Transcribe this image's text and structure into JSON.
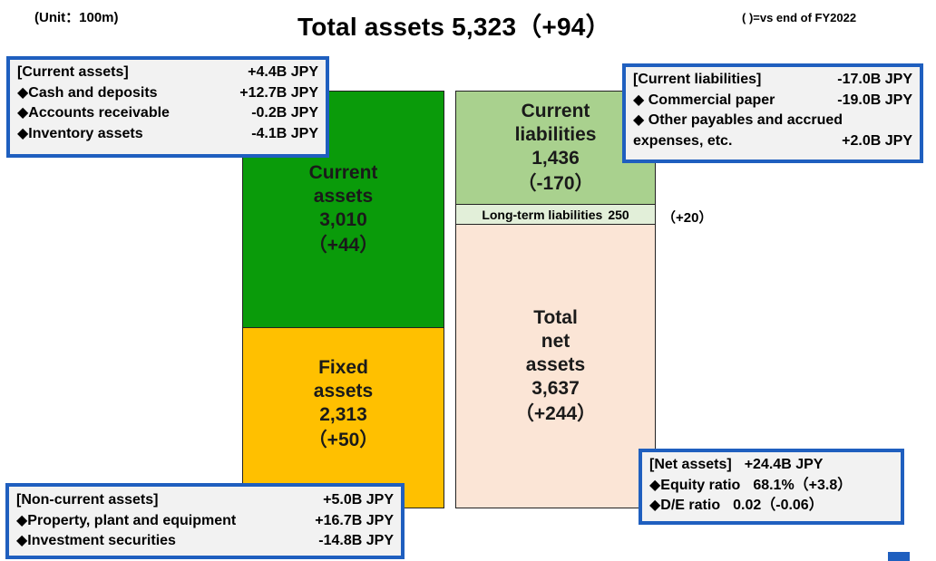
{
  "header": {
    "unit": "(Unit：100m)",
    "title": "Total assets 5,323（+94）",
    "note": "( )=vs end of FY2022"
  },
  "blocks": {
    "current_assets": {
      "line1": "Current",
      "line2": "assets",
      "value": "3,010",
      "change": "（+44）"
    },
    "fixed_assets": {
      "line1": "Fixed",
      "line2": "assets",
      "value": "2,313",
      "change": "（+50）"
    },
    "current_liabilities": {
      "line1": "Current",
      "line2": "liabilities",
      "value": "1,436",
      "change": "（-170）"
    },
    "long_term_liabilities": {
      "label": "Long-term liabilities",
      "value": "250",
      "change": "（+20）"
    },
    "net_assets": {
      "line1": "Total",
      "line2": "net",
      "line3": "assets",
      "value": "3,637",
      "change": "（+244）"
    }
  },
  "info_current_assets": {
    "rows": [
      {
        "label": "[Current assets]",
        "value": "+4.4B JPY"
      },
      {
        "label": "◆Cash and deposits",
        "value": "+12.7B JPY"
      },
      {
        "label": "◆Accounts receivable",
        "value": "-0.2B JPY"
      },
      {
        "label": "◆Inventory assets",
        "value": "-4.1B JPY"
      }
    ]
  },
  "info_noncurrent_assets": {
    "rows": [
      {
        "label": "[Non-current assets]",
        "value": "+5.0B JPY"
      },
      {
        "label": "◆Property, plant and equipment",
        "value": "+16.7B JPY"
      },
      {
        "label": "◆Investment securities",
        "value": "-14.8B JPY"
      }
    ]
  },
  "info_current_liabilities": {
    "row1": {
      "label": "[Current liabilities]",
      "value": "-17.0B JPY"
    },
    "row2": {
      "label": "◆ Commercial paper",
      "value": "-19.0B JPY"
    },
    "row3": {
      "label": "◆ Other payables and accrued"
    },
    "row4": {
      "label": "expenses, etc.",
      "value": "+2.0B JPY"
    }
  },
  "info_net_assets": {
    "rows": [
      {
        "label": "[Net assets]",
        "value": "+24.4B JPY"
      },
      {
        "label": "◆Equity ratio",
        "value": "68.1%（+3.8）"
      },
      {
        "label": "◆D/E ratio",
        "value": "0.02（-0.06）"
      }
    ]
  },
  "colors": {
    "current_assets": "#0a9b0a",
    "fixed_assets": "#ffc000",
    "current_liabilities": "#a9d18e",
    "long_term_liabilities": "#e2efd9",
    "net_assets": "#fbe5d6",
    "info_border": "#1f5fbf"
  }
}
